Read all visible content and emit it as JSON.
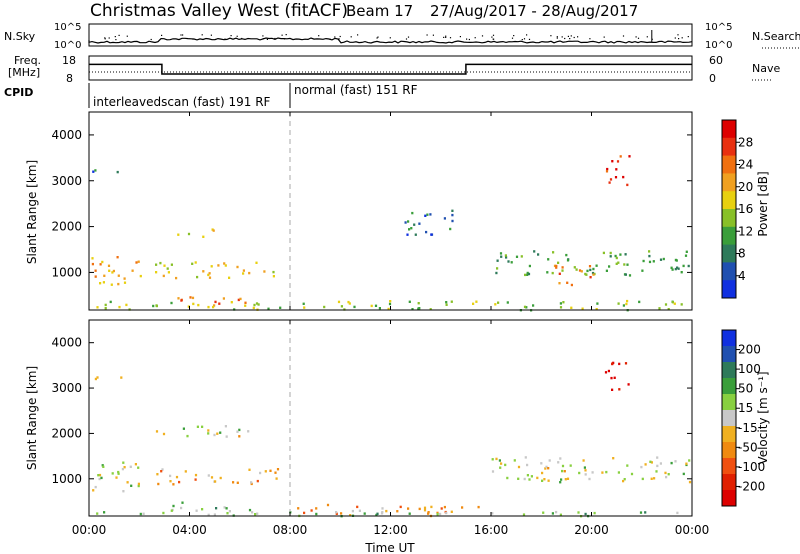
{
  "header": {
    "site": "Christmas Valley West (fitACF)",
    "beam": "Beam 17",
    "dates": "27/Aug/2017 - 28/Aug/2017"
  },
  "time_axis": {
    "label": "Time UT",
    "ticks": [
      "00:00",
      "04:00",
      "08:00",
      "12:00",
      "16:00",
      "20:00",
      "00:00"
    ],
    "hours": [
      0,
      4,
      8,
      12,
      16,
      20,
      24
    ]
  },
  "nsky_panel": {
    "left_label": "N.Sky",
    "right_label": "N.Search",
    "ticks_left": [
      "10^5",
      "10^0"
    ],
    "ticks_right": [
      "10^5",
      "10^0"
    ]
  },
  "freq_panel": {
    "left_label_top": "Freq.",
    "left_label_bottom": "[MHz]",
    "right_label": "Nave",
    "ticks_left": [
      "18",
      "8"
    ],
    "ticks_right": [
      "60",
      "0"
    ],
    "freq_steps": [
      {
        "start_hour": 0,
        "end_hour": 2.9,
        "freq_mhz": 14.5
      },
      {
        "start_hour": 2.9,
        "end_hour": 15.0,
        "freq_mhz": 10.5
      },
      {
        "start_hour": 15.0,
        "end_hour": 24,
        "freq_mhz": 14.5
      }
    ]
  },
  "cpid": {
    "label": "CPID",
    "programs": [
      {
        "name": "interleavedscan (fast) 191 RF",
        "start_hour": 0,
        "end_hour": 8
      },
      {
        "name": "normal (fast) 151 RF",
        "start_hour": 8,
        "end_hour": 24
      }
    ]
  },
  "chart_data": [
    {
      "type": "heatmap",
      "ylabel": "Slant Range [km]",
      "yticks": [
        1000,
        2000,
        3000,
        4000
      ],
      "ylim": [
        180,
        4500
      ],
      "colorbar": {
        "label": "Power [dB]",
        "ticks": [
          "4",
          "8",
          "12",
          "16",
          "20",
          "24",
          "28"
        ],
        "colors": [
          "#1030e0",
          "#2050b0",
          "#2e7a5a",
          "#3a9e3a",
          "#88c028",
          "#e8d010",
          "#f0a020",
          "#f07010",
          "#e83010",
          "#dd0000"
        ]
      },
      "regions": [
        {
          "t0": 0.0,
          "t1": 2.1,
          "r0": 750,
          "r1": 1400,
          "level": 0.65
        },
        {
          "t0": 2.6,
          "t1": 7.5,
          "r0": 900,
          "r1": 1250,
          "level": 0.55
        },
        {
          "t0": 3.0,
          "t1": 6.5,
          "r0": 300,
          "r1": 500,
          "level": 0.75
        },
        {
          "t0": 0.0,
          "t1": 24.0,
          "r0": 200,
          "r1": 400,
          "level": 0.45
        },
        {
          "t0": 16.0,
          "t1": 24.0,
          "r0": 950,
          "r1": 1500,
          "level": 0.35
        },
        {
          "t0": 18.5,
          "t1": 20.2,
          "r0": 750,
          "r1": 1200,
          "level": 0.75
        },
        {
          "t0": 0.0,
          "t1": 1.5,
          "r0": 3180,
          "r1": 3300,
          "level": 0.2
        },
        {
          "t0": 20.5,
          "t1": 21.5,
          "r0": 2900,
          "r1": 3600,
          "level": 0.85
        },
        {
          "t0": 12.5,
          "t1": 14.5,
          "r0": 1800,
          "r1": 2400,
          "level": 0.2
        },
        {
          "t0": 3.5,
          "t1": 5.0,
          "r0": 1800,
          "r1": 2000,
          "level": 0.55
        }
      ]
    },
    {
      "type": "heatmap",
      "ylabel": "Slant Range [km]",
      "yticks": [
        1000,
        2000,
        3000,
        4000
      ],
      "ylim": [
        180,
        4500
      ],
      "colorbar": {
        "label": "Velocity [m s⁻¹]",
        "ticks": [
          "200",
          "100",
          "50",
          "15",
          "-15",
          "-50",
          "-100",
          "-200"
        ],
        "colors": [
          "#1030e0",
          "#2050b0",
          "#2e7a5a",
          "#3a9e3a",
          "#88d040",
          "#c8c8c8",
          "#f0b020",
          "#f08a10",
          "#f05010",
          "#e02000",
          "#dd0000"
        ]
      },
      "regions": [
        {
          "t0": 0.0,
          "t1": 2.1,
          "r0": 750,
          "r1": 1400,
          "level": 0.5
        },
        {
          "t0": 2.6,
          "t1": 7.5,
          "r0": 900,
          "r1": 1250,
          "level": 0.62
        },
        {
          "t0": 3.0,
          "t1": 6.5,
          "r0": 300,
          "r1": 500,
          "level": 0.38
        },
        {
          "t0": 8.0,
          "t1": 15.5,
          "r0": 200,
          "r1": 450,
          "level": 0.62
        },
        {
          "t0": 16.0,
          "t1": 24.0,
          "r0": 950,
          "r1": 1500,
          "level": 0.5
        },
        {
          "t0": 0.0,
          "t1": 1.5,
          "r0": 3180,
          "r1": 3300,
          "level": 0.5
        },
        {
          "t0": 20.5,
          "t1": 21.5,
          "r0": 2900,
          "r1": 3600,
          "level": 0.95
        },
        {
          "t0": 2.5,
          "t1": 6.5,
          "r0": 1950,
          "r1": 2200,
          "level": 0.5
        },
        {
          "t0": 0.0,
          "t1": 24.0,
          "r0": 200,
          "r1": 300,
          "level": 0.4
        }
      ]
    }
  ]
}
